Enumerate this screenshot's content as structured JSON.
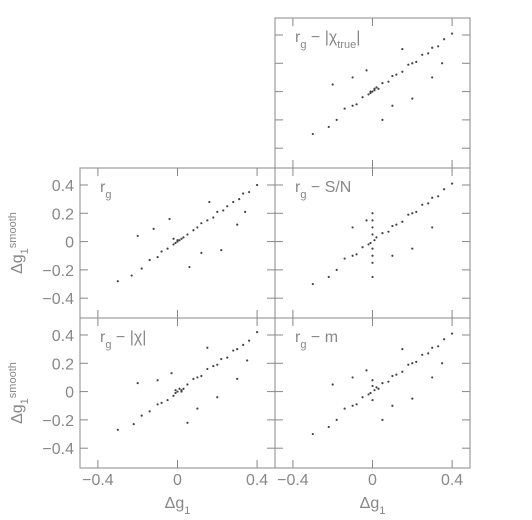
{
  "chart_data": [
    {
      "type": "scatter",
      "title": [
        {
          "text": "r"
        },
        {
          "text": "g",
          "shift": "sub"
        },
        {
          "text": " − |χ"
        },
        {
          "text": "true",
          "shift": "sub"
        },
        {
          "text": "|"
        }
      ],
      "x": [
        0,
        0.01,
        -0.01,
        0.02,
        -0.02,
        0.03,
        0.05,
        0.08,
        0.1,
        0.12,
        0.15,
        0.18,
        0.2,
        0.22,
        0.25,
        0.28,
        0.3,
        0.33,
        0.36,
        0.4,
        -0.05,
        -0.08,
        -0.1,
        -0.14,
        -0.18,
        -0.22,
        0.1,
        -0.1,
        0.2,
        -0.3,
        0.3,
        0.05,
        -0.03,
        0.15,
        -0.2,
        0.35,
        0.01,
        -0.01
      ],
      "y": [
        0,
        0.01,
        -0.01,
        0.03,
        -0.02,
        0.02,
        0.06,
        0.07,
        0.11,
        0.12,
        0.14,
        0.19,
        0.2,
        0.21,
        0.26,
        0.27,
        0.31,
        0.32,
        0.37,
        0.41,
        -0.04,
        -0.09,
        -0.1,
        -0.12,
        -0.2,
        -0.25,
        -0.1,
        0.1,
        -0.05,
        -0.3,
        0.1,
        -0.2,
        0.15,
        0.3,
        0.05,
        0.2,
        0.02,
        0.0
      ],
      "color": "#444",
      "xlim": [
        -0.49,
        0.49
      ],
      "ylim": [
        -0.54,
        0.52
      ],
      "xticks": [
        {
          "value": -0.4,
          "label": "−0.4"
        },
        0,
        0.4
      ],
      "yticks": [
        {
          "value": -0.4,
          "label": "−0.4"
        },
        {
          "value": -0.2,
          "label": "−0.2"
        },
        0,
        0.2,
        0.4
      ]
    },
    {
      "type": "scatter",
      "title": [
        {
          "text": "r"
        },
        {
          "text": "g",
          "shift": "sub"
        }
      ],
      "x": [
        0,
        0.01,
        -0.01,
        0.02,
        -0.02,
        0.03,
        0.05,
        0.08,
        0.1,
        0.12,
        0.15,
        0.18,
        0.2,
        0.23,
        0.25,
        0.28,
        0.31,
        0.33,
        0.36,
        0.4,
        -0.05,
        -0.08,
        -0.1,
        -0.14,
        -0.18,
        -0.23,
        0.12,
        -0.12,
        0.22,
        -0.3,
        0.3,
        0.06,
        -0.04,
        0.16,
        -0.2,
        0.34,
        0.0,
        -0.02
      ],
      "y": [
        0,
        0.01,
        -0.01,
        0.02,
        -0.02,
        0.03,
        0.05,
        0.08,
        0.1,
        0.13,
        0.15,
        0.17,
        0.21,
        0.22,
        0.25,
        0.28,
        0.3,
        0.34,
        0.35,
        0.4,
        -0.05,
        -0.07,
        -0.11,
        -0.13,
        -0.19,
        -0.24,
        -0.08,
        0.09,
        -0.06,
        -0.28,
        0.12,
        -0.18,
        0.16,
        0.28,
        0.04,
        0.21,
        0.01,
        0.02
      ],
      "color": "#444",
      "xlim": [
        -0.49,
        0.49
      ],
      "ylim": [
        -0.54,
        0.52
      ],
      "xticks": [
        {
          "value": -0.4,
          "label": "−0.4"
        },
        0,
        0.4
      ],
      "yticks": [
        {
          "value": -0.4,
          "label": "−0.4"
        },
        {
          "value": -0.2,
          "label": "−0.2"
        },
        0,
        0.2,
        0.4
      ],
      "ylabel": [
        {
          "text": "Δg"
        },
        {
          "text": "1",
          "shift": "sub"
        },
        {
          "text": "smooth",
          "shift": "sup"
        }
      ]
    },
    {
      "type": "scatter",
      "title": [
        {
          "text": "r"
        },
        {
          "text": "g",
          "shift": "sub"
        },
        {
          "text": " − S/N"
        }
      ],
      "x": [
        0,
        0,
        0,
        0,
        0,
        0,
        0,
        0,
        0.01,
        -0.01,
        0.02,
        -0.02,
        0.05,
        0.08,
        0.1,
        0.12,
        0.15,
        0.18,
        0.2,
        0.22,
        0.25,
        0.28,
        0.3,
        0.33,
        0.36,
        0.4,
        -0.05,
        -0.08,
        -0.1,
        -0.14,
        -0.18,
        -0.22,
        0.1,
        -0.1,
        0.2,
        -0.3,
        0.3,
        -0.03
      ],
      "y": [
        0.2,
        0.15,
        0.1,
        0.05,
        -0.05,
        -0.1,
        -0.15,
        -0.25,
        0.01,
        -0.01,
        0.03,
        -0.02,
        0.06,
        0.07,
        0.11,
        0.12,
        0.14,
        0.19,
        0.2,
        0.21,
        0.26,
        0.27,
        0.31,
        0.32,
        0.37,
        0.41,
        -0.04,
        -0.09,
        -0.1,
        -0.12,
        -0.2,
        -0.25,
        -0.1,
        0.1,
        -0.05,
        -0.3,
        0.1,
        0.15
      ],
      "color": "#444",
      "xlim": [
        -0.49,
        0.49
      ],
      "ylim": [
        -0.54,
        0.52
      ],
      "xticks": [
        {
          "value": -0.4,
          "label": "−0.4"
        },
        0,
        0.4
      ],
      "yticks": [
        {
          "value": -0.4,
          "label": "−0.4"
        },
        {
          "value": -0.2,
          "label": "−0.2"
        },
        0,
        0.2,
        0.4
      ]
    },
    {
      "type": "scatter",
      "title": [
        {
          "text": "r"
        },
        {
          "text": "g",
          "shift": "sub"
        },
        {
          "text": " − |χ|"
        }
      ],
      "x": [
        0,
        0.01,
        -0.01,
        0.02,
        -0.02,
        0.03,
        0.05,
        0.08,
        0.1,
        0.12,
        0.15,
        0.18,
        0.2,
        0.22,
        0.25,
        0.28,
        0.3,
        0.33,
        0.36,
        0.4,
        -0.05,
        -0.08,
        -0.1,
        -0.14,
        -0.18,
        -0.22,
        0.1,
        -0.1,
        0.2,
        -0.3,
        0.3,
        0.05,
        -0.03,
        0.15,
        -0.2,
        0.35,
        0.02,
        -0.01
      ],
      "y": [
        0,
        0.02,
        -0.01,
        0.01,
        -0.03,
        0.02,
        0.05,
        0.09,
        0.1,
        0.11,
        0.16,
        0.18,
        0.19,
        0.23,
        0.24,
        0.29,
        0.3,
        0.33,
        0.36,
        0.42,
        -0.06,
        -0.08,
        -0.09,
        -0.14,
        -0.17,
        -0.23,
        -0.12,
        0.08,
        -0.04,
        -0.27,
        0.09,
        -0.22,
        0.13,
        0.31,
        0.06,
        0.22,
        0.0,
        0.01
      ],
      "color": "#444",
      "xlim": [
        -0.49,
        0.49
      ],
      "ylim": [
        -0.54,
        0.52
      ],
      "xticks": [
        {
          "value": -0.4,
          "label": "−0.4"
        },
        0,
        0.4
      ],
      "yticks": [
        {
          "value": -0.4,
          "label": "−0.4"
        },
        {
          "value": -0.2,
          "label": "−0.2"
        },
        0,
        0.2,
        0.4
      ],
      "xlabel": [
        {
          "text": "Δg"
        },
        {
          "text": "1",
          "shift": "sub"
        }
      ],
      "ylabel": [
        {
          "text": "Δg"
        },
        {
          "text": "1",
          "shift": "sub"
        },
        {
          "text": "smooth",
          "shift": "sup"
        }
      ]
    },
    {
      "type": "scatter",
      "title": [
        {
          "text": "r"
        },
        {
          "text": "g",
          "shift": "sub"
        },
        {
          "text": " − m"
        }
      ],
      "x": [
        0,
        0,
        0,
        0.01,
        -0.01,
        0.02,
        -0.02,
        0.03,
        0.05,
        0.08,
        0.1,
        0.12,
        0.15,
        0.18,
        0.2,
        0.22,
        0.25,
        0.28,
        0.3,
        0.33,
        0.36,
        0.4,
        -0.05,
        -0.08,
        -0.1,
        -0.14,
        -0.18,
        -0.22,
        0.1,
        -0.1,
        0.2,
        -0.3,
        0.3,
        0.05,
        -0.03,
        0.15,
        -0.2,
        0.35
      ],
      "y": [
        0.08,
        -0.06,
        0.04,
        0.01,
        -0.01,
        0.03,
        -0.02,
        0.02,
        0.06,
        0.07,
        0.11,
        0.12,
        0.14,
        0.19,
        0.2,
        0.21,
        0.26,
        0.27,
        0.31,
        0.32,
        0.37,
        0.41,
        -0.04,
        -0.09,
        -0.1,
        -0.12,
        -0.2,
        -0.25,
        -0.1,
        0.1,
        -0.05,
        -0.3,
        0.1,
        -0.2,
        0.15,
        0.3,
        0.05,
        0.2
      ],
      "color": "#444",
      "xlim": [
        -0.49,
        0.49
      ],
      "ylim": [
        -0.54,
        0.52
      ],
      "xticks": [
        {
          "value": -0.4,
          "label": "−0.4"
        },
        0,
        0.4
      ],
      "yticks": [
        {
          "value": -0.4,
          "label": "−0.4"
        },
        {
          "value": -0.2,
          "label": "−0.2"
        },
        0,
        0.2,
        0.4
      ],
      "xlabel": [
        {
          "text": "Δg"
        },
        {
          "text": "1",
          "shift": "sub"
        }
      ]
    }
  ]
}
